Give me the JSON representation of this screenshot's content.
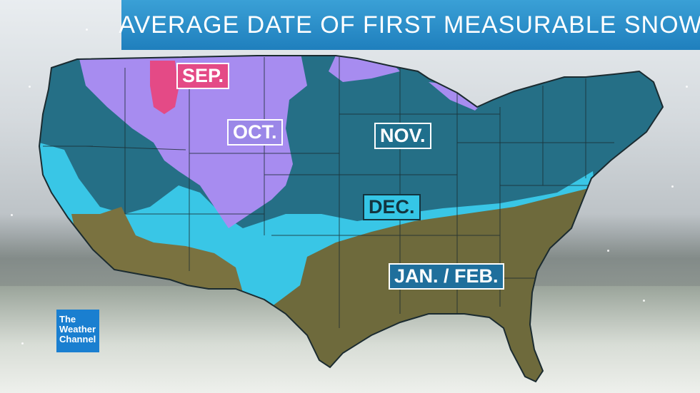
{
  "title": "AVERAGE DATE OF FIRST MEASURABLE SNOW",
  "legend_labels": {
    "sep": "SEP.",
    "oct": "OCT.",
    "nov": "NOV.",
    "dec": "DEC.",
    "jan_feb": "JAN. / FEB."
  },
  "zone_colors": {
    "sep": "#e44a86",
    "oct": "#a78cf0",
    "nov": "#256f86",
    "dec": "#39c6e6",
    "jan_feb": "#6e6a3c"
  },
  "logo": {
    "line1": "The",
    "line2": "Weather",
    "line3": "Channel"
  }
}
